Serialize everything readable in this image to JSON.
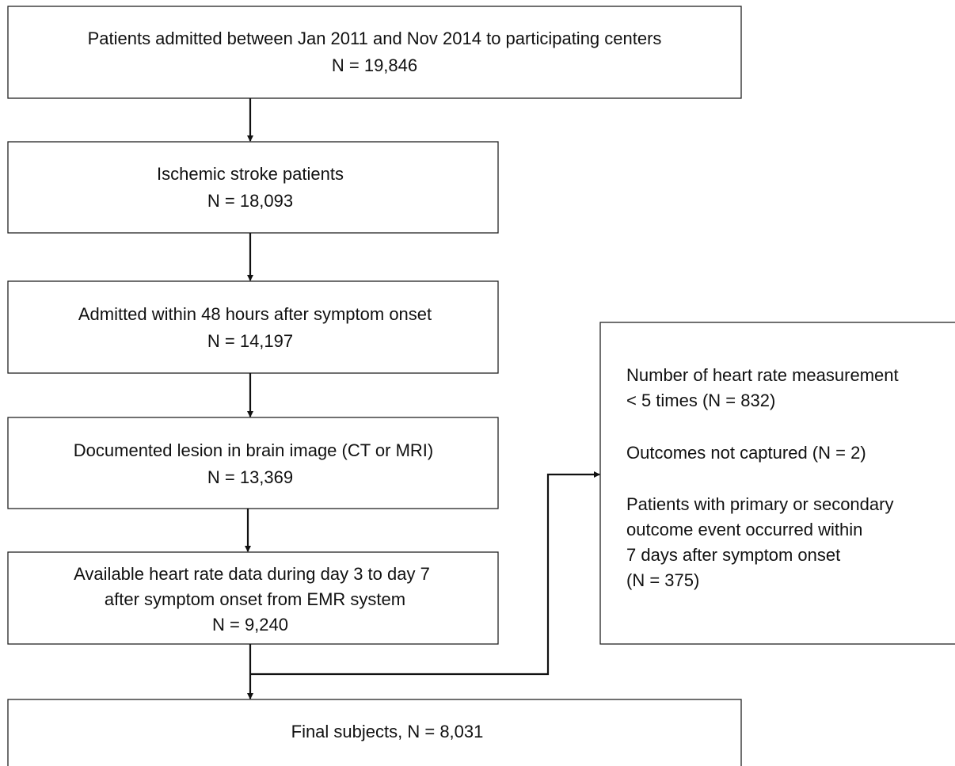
{
  "nodes": [
    {
      "lines": [
        "Patients admitted between Jan 2011 and Nov 2014 to participating centers",
        "N = 19,846"
      ]
    },
    {
      "lines": [
        "Ischemic stroke patients",
        "N = 18,093"
      ]
    },
    {
      "lines": [
        "Admitted within 48 hours after symptom onset",
        "N = 14,197"
      ]
    },
    {
      "lines": [
        "Documented lesion in brain image (CT or MRI)",
        "N = 13,369"
      ]
    },
    {
      "lines": [
        "Available heart rate data during day 3 to day 7",
        "after symptom onset from EMR system",
        "N = 9,240"
      ]
    },
    {
      "lines": [
        "Final subjects, N = 8,031"
      ]
    }
  ],
  "exclusions": [
    {
      "lines": [
        "Number of heart rate measurement",
        "< 5 times (N = 832)"
      ]
    },
    {
      "lines": [
        "Outcomes not captured (N = 2)"
      ]
    },
    {
      "lines": [
        "Patients with primary or secondary",
        "outcome event occurred within",
        "7 days after symptom onset",
        "(N = 375)"
      ]
    }
  ]
}
